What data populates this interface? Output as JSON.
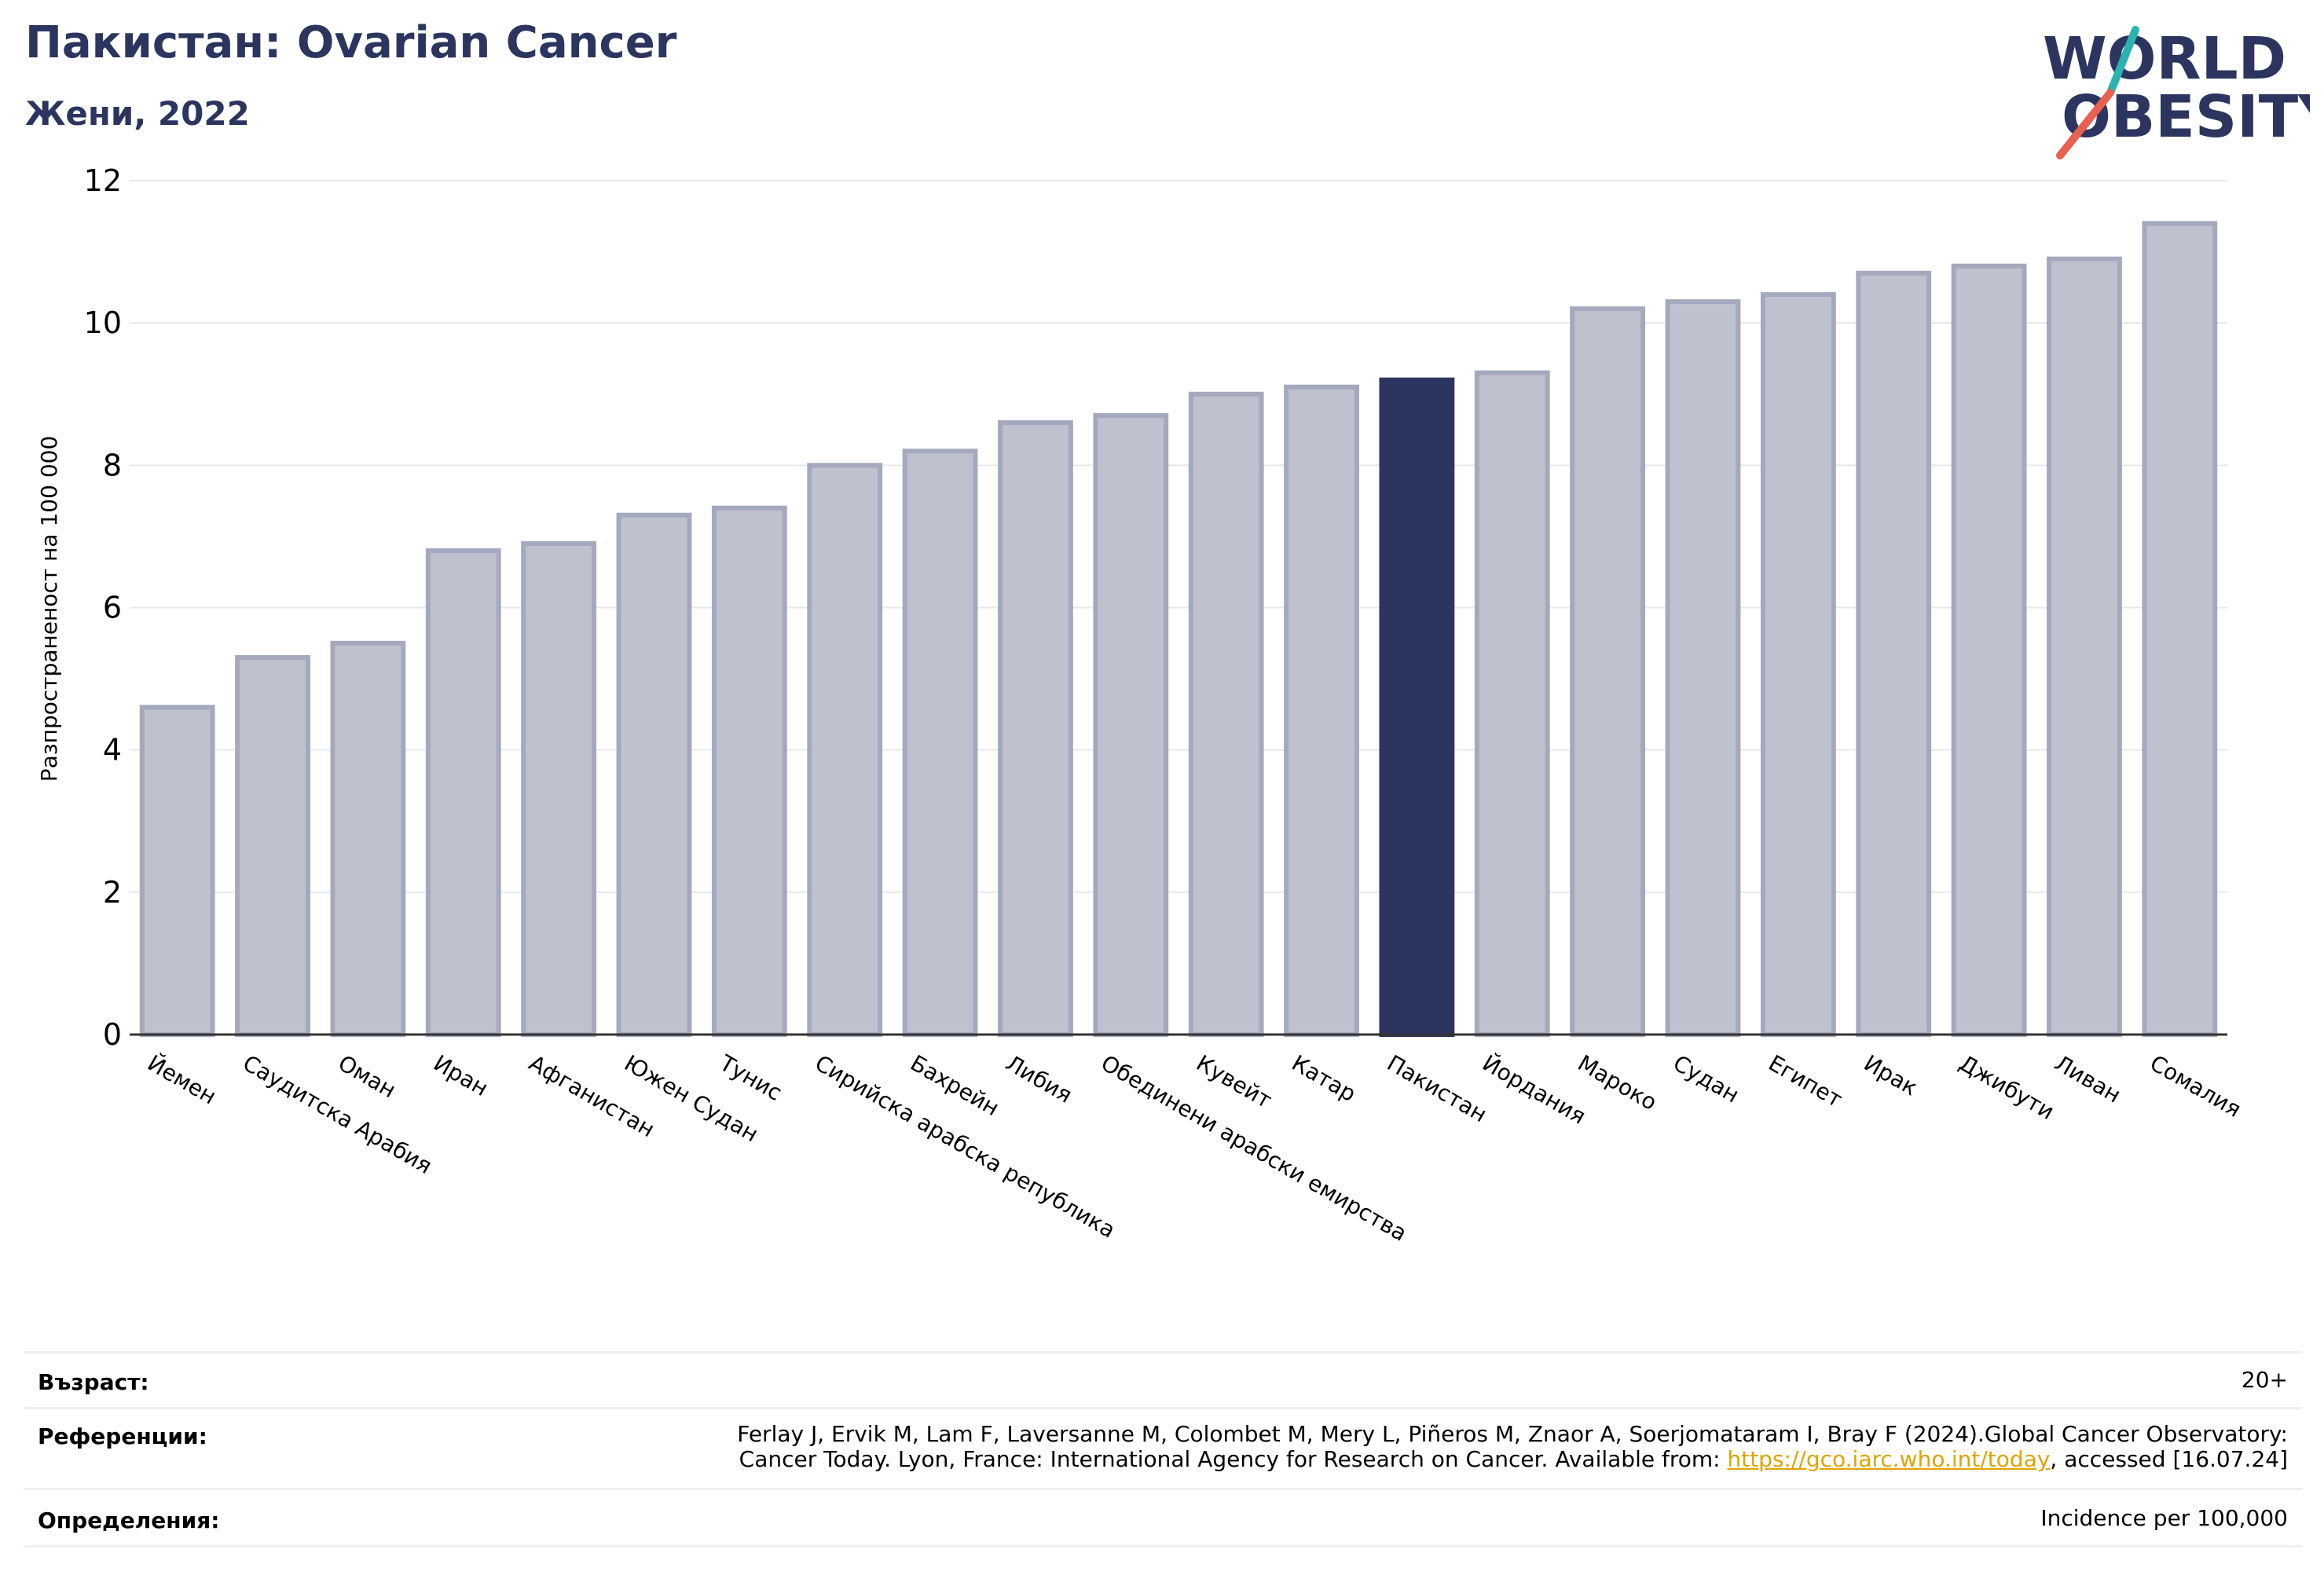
{
  "header": {
    "title": "Пакистан: Ovarian Cancer",
    "subtitle": "Жени, 2022"
  },
  "logo": {
    "line1": "WORLD",
    "line2": "OBESITY",
    "colors": {
      "text": "#2b355f",
      "slash_teal": "#2ab3b1",
      "slash_red": "#e8604f"
    }
  },
  "colors": {
    "highlight": "#2b355f",
    "bar_fill": "#bec1ce",
    "bar_stroke": "#a4a9bd",
    "grid": "#e8e9ee"
  },
  "chart_data": {
    "type": "bar",
    "title": "",
    "xlabel": "",
    "ylabel": "Разпространеност  на 100 000",
    "ylim": [
      0,
      12
    ],
    "yticks": [
      0,
      2,
      4,
      6,
      8,
      10,
      12
    ],
    "grid": true,
    "highlight": "Пакистан",
    "categories": [
      "Йемен",
      "Саудитска Арабия",
      "Оман",
      "Иран",
      "Афганистан",
      "Южен Судан",
      "Тунис",
      "Сирийска арабска република",
      "Бахрейн",
      "Либия",
      "Обединени арабски емирства",
      "Кувейт",
      "Катар",
      "Пакистан",
      "Йордания",
      "Мароко",
      "Судан",
      "Египет",
      "Ирак",
      "Джибути",
      "Ливан",
      "Сомалия"
    ],
    "values": [
      4.6,
      5.3,
      5.5,
      6.8,
      6.9,
      7.3,
      7.4,
      8.0,
      8.2,
      8.6,
      8.7,
      9.0,
      9.1,
      9.2,
      9.3,
      10.2,
      10.3,
      10.4,
      10.7,
      10.8,
      10.9,
      11.4
    ]
  },
  "info": {
    "age_label": "Възраст:",
    "age_value": "20+",
    "ref_label": "Референции:",
    "ref_line1": "Ferlay J, Ervik M, Lam F, Laversanne M, Colombet M, Mery L, Piñeros M, Znaor A, Soerjomataram I, Bray F (2024).Global Cancer Observatory:",
    "ref_line2_pre": "Cancer Today. Lyon, France: International Agency for Research on Cancer. Available from: ",
    "ref_link": "https://gco.iarc.who.int/today",
    "ref_line2_post": ", accessed [16.07.24]",
    "def_label": "Определения:",
    "def_value": "Incidence per 100,000"
  }
}
